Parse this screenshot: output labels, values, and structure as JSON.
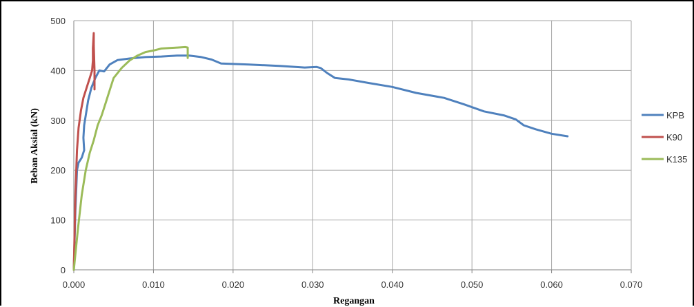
{
  "chart_data": {
    "type": "line",
    "title": "",
    "xlabel": "Regangan",
    "ylabel": "Beban Aksial (kN)",
    "xlim": [
      0,
      0.07
    ],
    "ylim": [
      0,
      500
    ],
    "x_ticks": [
      "0.000",
      "0.010",
      "0.020",
      "0.030",
      "0.040",
      "0.050",
      "0.060",
      "0.070"
    ],
    "y_ticks": [
      "0",
      "100",
      "200",
      "300",
      "400",
      "500"
    ],
    "grid": true,
    "legend_position": "right",
    "series": [
      {
        "name": "KPB",
        "color": "#4F81BD",
        "points": [
          [
            0,
            0
          ],
          [
            0.0002,
            120
          ],
          [
            0.0004,
            200
          ],
          [
            0.0006,
            215
          ],
          [
            0.001,
            225
          ],
          [
            0.0013,
            240
          ],
          [
            0.0012,
            265
          ],
          [
            0.0013,
            290
          ],
          [
            0.0015,
            310
          ],
          [
            0.0018,
            340
          ],
          [
            0.0022,
            365
          ],
          [
            0.0027,
            385
          ],
          [
            0.0032,
            400
          ],
          [
            0.0038,
            398
          ],
          [
            0.0045,
            412
          ],
          [
            0.0055,
            421
          ],
          [
            0.007,
            424
          ],
          [
            0.009,
            427
          ],
          [
            0.011,
            428
          ],
          [
            0.013,
            430
          ],
          [
            0.0145,
            430
          ],
          [
            0.016,
            427
          ],
          [
            0.0173,
            422
          ],
          [
            0.0185,
            414
          ],
          [
            0.022,
            412
          ],
          [
            0.026,
            409
          ],
          [
            0.029,
            406
          ],
          [
            0.0305,
            407
          ],
          [
            0.031,
            405
          ],
          [
            0.0318,
            395
          ],
          [
            0.0328,
            385
          ],
          [
            0.0345,
            382
          ],
          [
            0.037,
            375
          ],
          [
            0.04,
            367
          ],
          [
            0.043,
            355
          ],
          [
            0.0465,
            345
          ],
          [
            0.049,
            332
          ],
          [
            0.0515,
            318
          ],
          [
            0.054,
            310
          ],
          [
            0.0555,
            302
          ],
          [
            0.0565,
            290
          ],
          [
            0.058,
            282
          ],
          [
            0.06,
            273
          ],
          [
            0.062,
            268
          ]
        ]
      },
      {
        "name": "K90",
        "color": "#C0504D",
        "points": [
          [
            0,
            0
          ],
          [
            0.0002,
            150
          ],
          [
            0.0004,
            240
          ],
          [
            0.0006,
            285
          ],
          [
            0.0009,
            320
          ],
          [
            0.0012,
            345
          ],
          [
            0.0016,
            365
          ],
          [
            0.002,
            385
          ],
          [
            0.0023,
            400
          ],
          [
            0.0024,
            420
          ],
          [
            0.0024,
            445
          ],
          [
            0.0025,
            475
          ],
          [
            0.0025,
            450
          ],
          [
            0.0026,
            400
          ],
          [
            0.0026,
            362
          ]
        ]
      },
      {
        "name": "K135",
        "color": "#9BBB59",
        "points": [
          [
            0,
            0
          ],
          [
            0.0005,
            80
          ],
          [
            0.001,
            150
          ],
          [
            0.0015,
            200
          ],
          [
            0.002,
            235
          ],
          [
            0.0025,
            260
          ],
          [
            0.003,
            290
          ],
          [
            0.0035,
            310
          ],
          [
            0.004,
            335
          ],
          [
            0.0045,
            360
          ],
          [
            0.005,
            385
          ],
          [
            0.006,
            405
          ],
          [
            0.007,
            420
          ],
          [
            0.008,
            430
          ],
          [
            0.009,
            437
          ],
          [
            0.01,
            440
          ],
          [
            0.011,
            444
          ],
          [
            0.012,
            445
          ],
          [
            0.013,
            446
          ],
          [
            0.014,
            447
          ],
          [
            0.0143,
            446
          ],
          [
            0.0143,
            425
          ]
        ]
      }
    ]
  }
}
